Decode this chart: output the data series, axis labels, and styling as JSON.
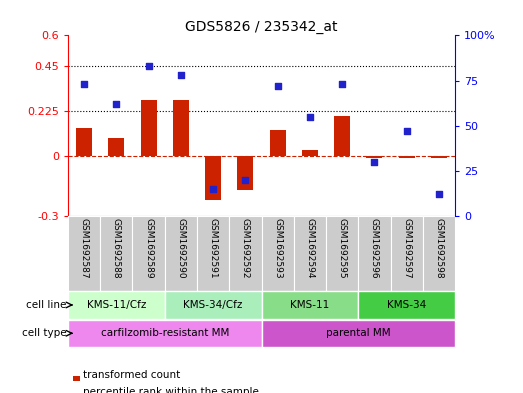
{
  "title": "GDS5826 / 235342_at",
  "samples": [
    "GSM1692587",
    "GSM1692588",
    "GSM1692589",
    "GSM1692590",
    "GSM1692591",
    "GSM1692592",
    "GSM1692593",
    "GSM1692594",
    "GSM1692595",
    "GSM1692596",
    "GSM1692597",
    "GSM1692598"
  ],
  "transformed_count": [
    0.14,
    0.09,
    0.28,
    0.28,
    -0.22,
    -0.17,
    0.13,
    0.03,
    0.2,
    -0.01,
    -0.01,
    -0.01
  ],
  "percentile_rank": [
    73,
    62,
    83,
    78,
    15,
    20,
    72,
    55,
    73,
    30,
    47,
    12
  ],
  "ylim_left": [
    -0.3,
    0.6
  ],
  "ylim_right": [
    0,
    100
  ],
  "yticks_left": [
    -0.3,
    0.0,
    0.225,
    0.45,
    0.6
  ],
  "ytick_labels_left": [
    "-0.3",
    "0",
    "0.225",
    "0.45",
    "0.6"
  ],
  "yticks_right": [
    0,
    25,
    50,
    75,
    100
  ],
  "ytick_labels_right": [
    "0",
    "25",
    "50",
    "75",
    "100%"
  ],
  "hlines": [
    0.225,
    0.45
  ],
  "cell_line_groups": [
    {
      "label": "KMS-11/Cfz",
      "start": 0,
      "end": 2,
      "color": "#ccffcc"
    },
    {
      "label": "KMS-34/Cfz",
      "start": 3,
      "end": 5,
      "color": "#aaeebb"
    },
    {
      "label": "KMS-11",
      "start": 6,
      "end": 8,
      "color": "#88dd88"
    },
    {
      "label": "KMS-34",
      "start": 9,
      "end": 11,
      "color": "#44cc44"
    }
  ],
  "cell_type_groups": [
    {
      "label": "carfilzomib-resistant MM",
      "start": 0,
      "end": 5,
      "color": "#ee88ee"
    },
    {
      "label": "parental MM",
      "start": 6,
      "end": 11,
      "color": "#cc55cc"
    }
  ],
  "cell_line_label": "cell line",
  "cell_type_label": "cell type",
  "legend_items": [
    {
      "label": "transformed count",
      "color": "#cc2200"
    },
    {
      "label": "percentile rank within the sample",
      "color": "#2222cc"
    }
  ],
  "bar_color": "#cc2200",
  "scatter_color": "#2222cc",
  "bar_width": 0.5,
  "zero_line_color": "#cc2200",
  "sample_bg_color": "#cccccc"
}
